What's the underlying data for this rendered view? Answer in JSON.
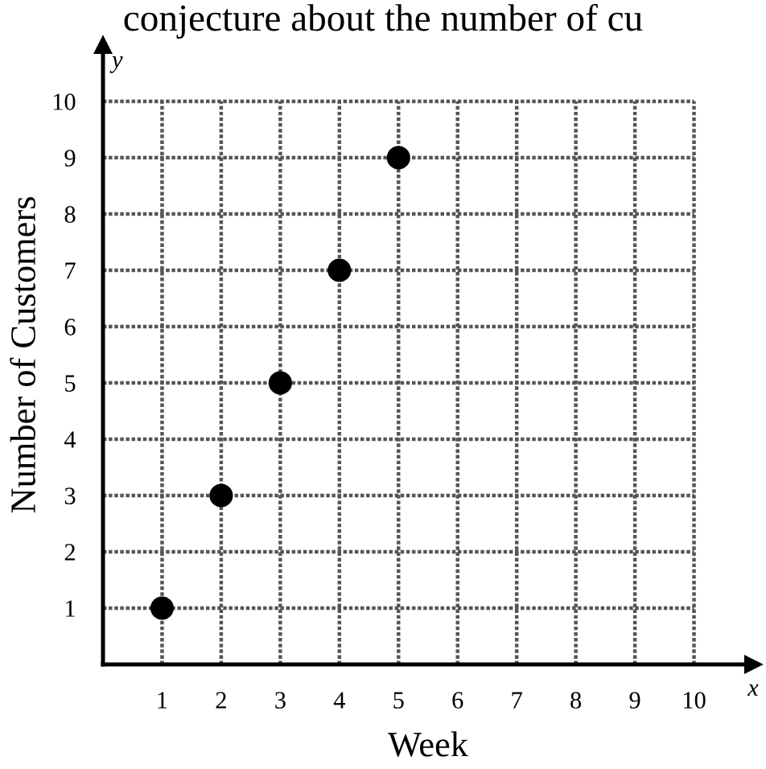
{
  "chart_data": {
    "type": "scatter",
    "xlabel": "Week",
    "ylabel": "Number of Customers",
    "annotations": [
      "conjecture about the number of cu",
      "x",
      "y"
    ],
    "x": [
      1,
      2,
      3,
      4,
      5
    ],
    "series": [
      {
        "color": "#000000",
        "values": [
          1,
          3,
          5,
          7,
          9
        ]
      }
    ],
    "xlim": [
      0,
      11
    ],
    "ylim": [
      0,
      11
    ],
    "xticks": [
      1,
      2,
      3,
      4,
      5,
      6,
      7,
      8,
      9,
      10
    ],
    "yticks": [
      1,
      2,
      3,
      4,
      5,
      6,
      7,
      8,
      9,
      10
    ],
    "grid": true,
    "marker": "circle"
  }
}
